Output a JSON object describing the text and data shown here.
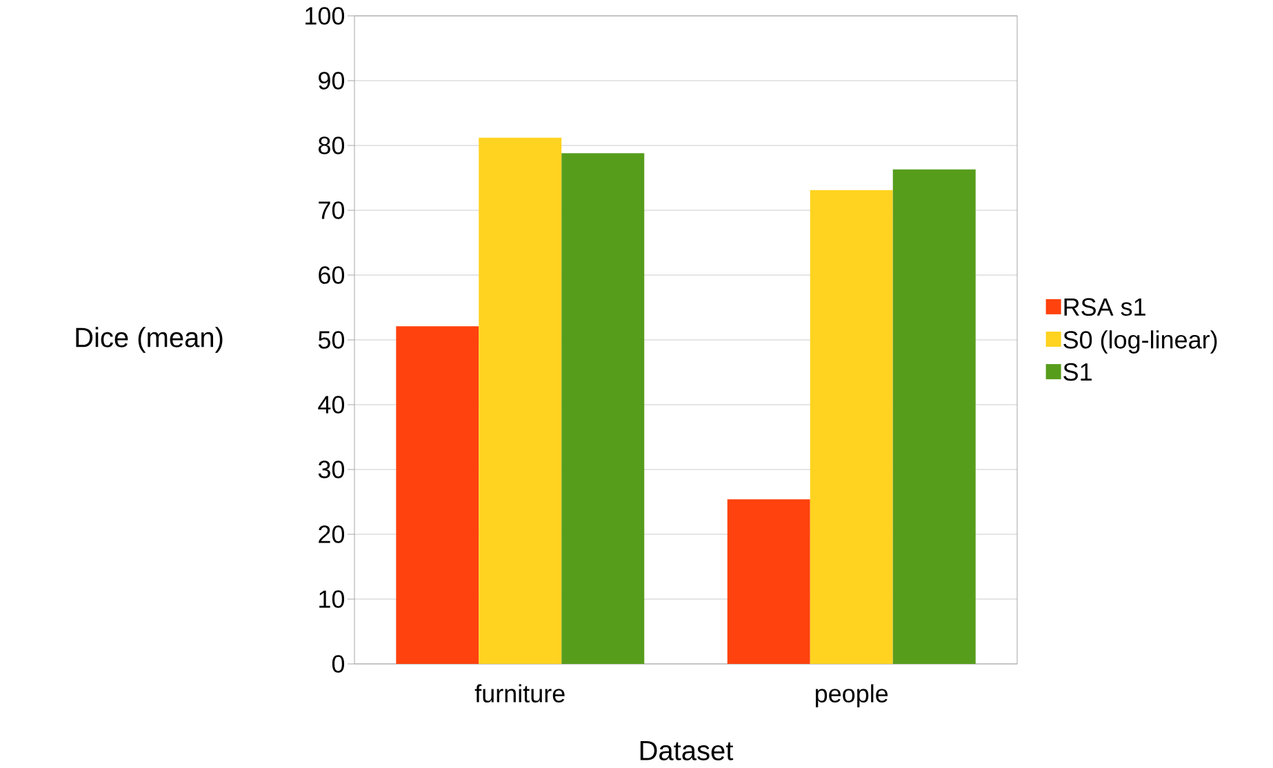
{
  "chart_data": {
    "type": "bar",
    "xlabel": "Dataset",
    "ylabel": "Dice (mean)",
    "categories": [
      "furniture",
      "people"
    ],
    "series": [
      {
        "name": "RSA s1",
        "color": "#ff420e",
        "values": [
          52.1,
          25.4
        ]
      },
      {
        "name": "S0 (log-linear)",
        "color": "#ffd320",
        "values": [
          81.2,
          73.1
        ]
      },
      {
        "name": "S1",
        "color": "#579d1c",
        "values": [
          78.8,
          76.3
        ]
      }
    ],
    "ylim": [
      0,
      100
    ],
    "yticks": [
      0,
      10,
      20,
      30,
      40,
      50,
      60,
      70,
      80,
      90,
      100
    ],
    "grid": "y",
    "legend": "right"
  }
}
